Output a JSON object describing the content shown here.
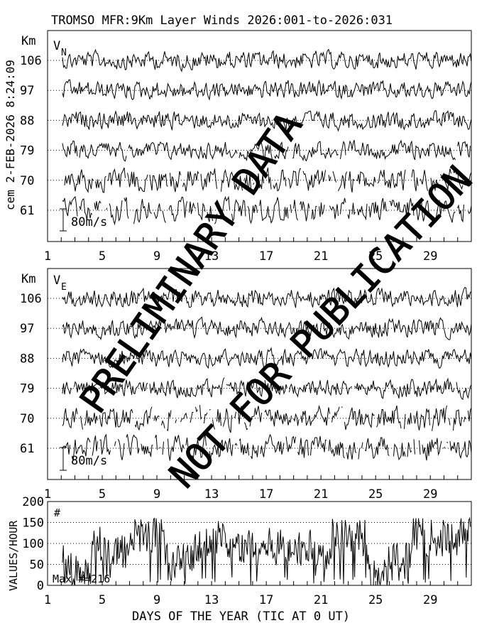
{
  "title": "TROMSO MFR:9Km Layer Winds 2026:001-to-2026:031",
  "side_label": "cem 2-FEB-2026  8:24:09",
  "xlabel": "DAYS OF THE YEAR (TIC AT 0 UT)",
  "watermark": {
    "line1": "PRELIMINARY DATA",
    "line2": "NOT FOR PUBLICATION"
  },
  "chart_data": [
    {
      "type": "line",
      "panel": "north-wind",
      "component_label": "V",
      "component_sub": "N",
      "unit_label": "Km",
      "altitudes_km": [
        106,
        97,
        88,
        79,
        70,
        61
      ],
      "scale_bar_label": "80m/s",
      "scale_bar_ms": 80,
      "x_ticks": [
        1,
        5,
        9,
        13,
        17,
        21,
        25,
        29
      ],
      "xlim": [
        1,
        32
      ],
      "series_style": "noisy wind traces, one per altitude, gaps at low altitudes",
      "grid": "dotted baseline per altitude"
    },
    {
      "type": "line",
      "panel": "east-wind",
      "component_label": "V",
      "component_sub": "E",
      "unit_label": "Km",
      "altitudes_km": [
        106,
        97,
        88,
        79,
        70,
        61
      ],
      "scale_bar_label": "80m/s",
      "scale_bar_ms": 80,
      "x_ticks": [
        1,
        5,
        9,
        13,
        17,
        21,
        25,
        29
      ],
      "xlim": [
        1,
        32
      ],
      "series_style": "noisy wind traces, one per altitude, gaps at low altitudes",
      "grid": "dotted baseline per altitude"
    },
    {
      "type": "line",
      "panel": "values-per-hour",
      "ylabel": "VALUES/HOUR",
      "symbol_label": "#",
      "max_label": "Max #=216",
      "y_ticks": [
        0,
        50,
        100,
        150,
        200
      ],
      "ylim": [
        0,
        200
      ],
      "x_ticks": [
        1,
        5,
        9,
        13,
        17,
        21,
        25,
        29
      ],
      "xlim": [
        1,
        32
      ],
      "series_style": "hourly counts fluctuating mostly between 0 and 160",
      "grid": "dotted at 50, 100, 150"
    }
  ]
}
